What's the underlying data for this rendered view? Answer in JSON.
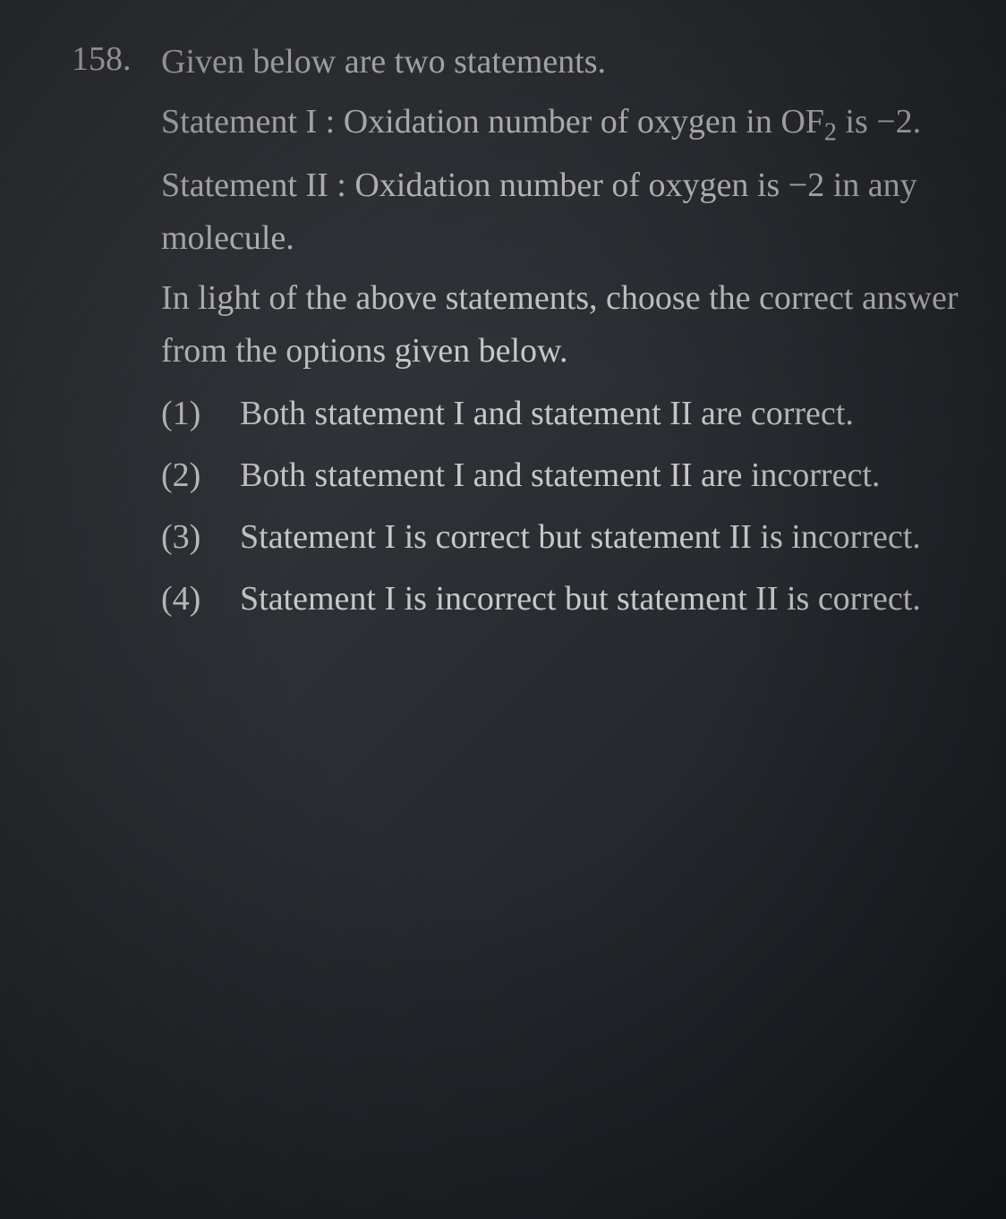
{
  "question": {
    "number": "158.",
    "intro": "Given below are two statements.",
    "statement1_label": "Statement I :",
    "statement1_text_pre": "Oxidation number of oxygen in OF",
    "statement1_sub": "2",
    "statement1_text_post": " is −2.",
    "statement2_label": "Statement II :",
    "statement2_text": "Oxidation number of oxygen is −2 in any molecule.",
    "instruction": "In light of the above statements, choose the correct answer from the options given below.",
    "options": [
      {
        "num": "(1)",
        "text": "Both statement I and statement II are correct."
      },
      {
        "num": "(2)",
        "text": "Both statement I and statement II are incorrect."
      },
      {
        "num": "(3)",
        "text": "Statement I is correct but statement II is incorrect."
      },
      {
        "num": "(4)",
        "text": "Statement I is incorrect but statement II is correct."
      }
    ]
  },
  "styling": {
    "background_gradient_start": "#3a3d42",
    "background_gradient_mid": "#2a2d32",
    "background_gradient_end": "#1a1d22",
    "text_color": "#c8c8c8",
    "number_color": "#d0d0d0",
    "font_family": "Georgia, Times New Roman, serif",
    "base_font_size": 38,
    "sub_font_size": 28,
    "line_height": 1.55
  }
}
